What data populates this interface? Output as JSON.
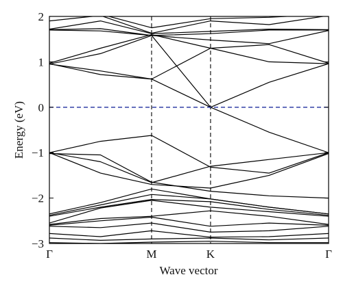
{
  "chart_data": {
    "type": "line",
    "title": "",
    "xlabel": "Wave vector",
    "ylabel": "Energy (eV)",
    "ylim": [
      -3,
      2
    ],
    "xlim": [
      0,
      3
    ],
    "grid": false,
    "k_points": [
      {
        "label": "Γ",
        "x": 0
      },
      {
        "label": "M",
        "x": 1
      },
      {
        "label": "K",
        "x": 1.577
      },
      {
        "label": "Γ",
        "x": 2.732
      }
    ],
    "y_ticks": [
      {
        "value": 2,
        "label": "2"
      },
      {
        "value": 1,
        "label": "1"
      },
      {
        "value": 0,
        "label": "0"
      },
      {
        "value": -1,
        "label": "−1"
      },
      {
        "value": -2,
        "label": "−2"
      },
      {
        "value": -3,
        "label": "−3"
      }
    ],
    "fermi_level": 0,
    "fermi_color": "#1f2e9e",
    "band_color": "#000000",
    "x": [
      0,
      0.5,
      1,
      1.577,
      2.15,
      2.732
    ],
    "series": [
      {
        "values": [
          -2.98,
          -3.0,
          -2.97,
          -2.95,
          -2.98,
          -2.98
        ]
      },
      {
        "values": [
          -2.88,
          -2.93,
          -2.9,
          -2.88,
          -2.92,
          -2.88
        ]
      },
      {
        "values": [
          -2.78,
          -2.85,
          -2.72,
          -2.86,
          -2.85,
          -2.78
        ]
      },
      {
        "values": [
          -2.62,
          -2.65,
          -2.55,
          -2.75,
          -2.72,
          -2.62
        ]
      },
      {
        "values": [
          -2.6,
          -2.5,
          -2.42,
          -2.62,
          -2.55,
          -2.6
        ]
      },
      {
        "values": [
          -2.58,
          -2.45,
          -2.4,
          -2.28,
          -2.4,
          -2.58
        ]
      },
      {
        "values": [
          -2.55,
          -2.22,
          -2.05,
          -2.2,
          -2.3,
          -2.4
        ]
      },
      {
        "values": [
          -2.4,
          -2.2,
          -2.03,
          -2.08,
          -2.25,
          -2.38
        ]
      },
      {
        "values": [
          -2.38,
          -2.15,
          -1.92,
          -2.02,
          -2.2,
          -2.35
        ]
      },
      {
        "values": [
          -2.35,
          -2.1,
          -1.8,
          -2.02,
          -2.2,
          -2.35
        ]
      },
      {
        "values": [
          -1.02,
          -1.05,
          -1.65,
          -1.85,
          -1.95,
          -2.0
        ]
      },
      {
        "values": [
          -1.0,
          -1.45,
          -1.7,
          -1.78,
          -1.5,
          -1.02
        ]
      },
      {
        "values": [
          -1.0,
          -0.75,
          -0.62,
          -1.32,
          -1.45,
          -1.0
        ]
      },
      {
        "values": [
          -1.0,
          -1.2,
          -1.66,
          -1.3,
          -1.15,
          -1.0
        ]
      },
      {
        "values": [
          0.95,
          0.8,
          0.62,
          0.0,
          -0.55,
          -1.0
        ]
      },
      {
        "values": [
          0.95,
          1.18,
          1.58,
          0.0,
          0.55,
          0.96
        ]
      },
      {
        "values": [
          0.96,
          0.72,
          0.62,
          1.3,
          1.0,
          0.96
        ]
      },
      {
        "values": [
          0.97,
          1.3,
          1.6,
          1.3,
          1.38,
          0.97
        ]
      },
      {
        "values": [
          1.7,
          1.68,
          1.58,
          1.48,
          1.4,
          1.69
        ]
      },
      {
        "values": [
          1.71,
          1.73,
          1.58,
          1.62,
          1.7,
          1.7
        ]
      },
      {
        "values": [
          1.72,
          1.9,
          1.62,
          1.67,
          1.72,
          1.71
        ]
      },
      {
        "values": [
          1.9,
          2.02,
          1.63,
          1.9,
          1.82,
          2.02
        ]
      },
      {
        "values": [
          2.0,
          2.05,
          1.75,
          1.95,
          1.98,
          2.05
        ]
      }
    ]
  }
}
